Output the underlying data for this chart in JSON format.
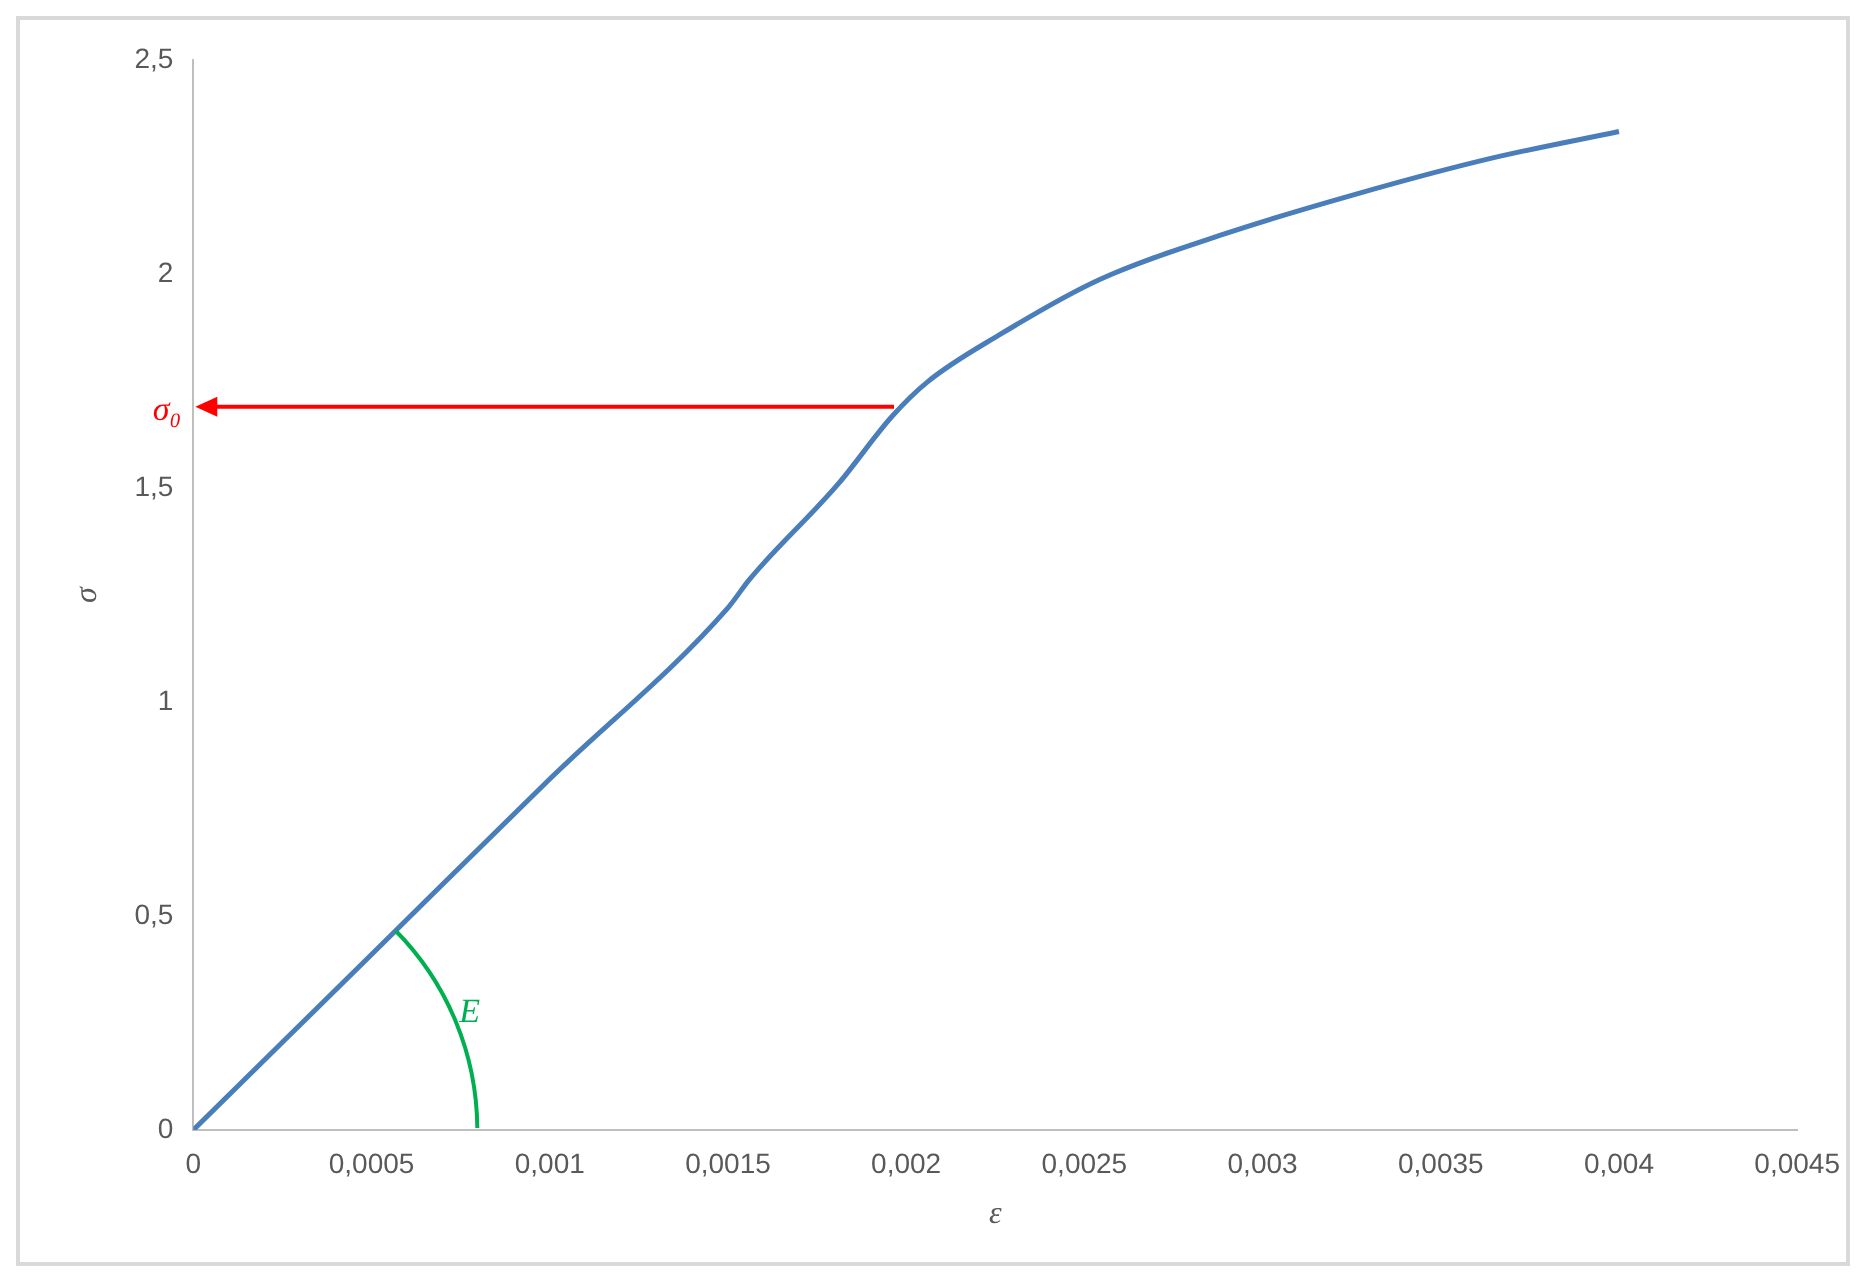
{
  "chart_data": {
    "type": "line",
    "xlabel": "ε",
    "ylabel": "σ",
    "x": [
      0,
      0.0005,
      0.001,
      0.0015,
      0.00156,
      0.00181,
      0.00196,
      0.00206,
      0.00226,
      0.00254,
      0.00288,
      0.00326,
      0.00364,
      0.004
    ],
    "series": [
      {
        "color": "#4a7ebb",
        "values": [
          0,
          0.41,
          0.82,
          1.22,
          1.286,
          1.51,
          1.667,
          1.748,
          1.857,
          1.986,
          2.09,
          2.186,
          2.27,
          2.333
        ]
      }
    ],
    "xlim": [
      0,
      0.0045
    ],
    "xticks": [
      0,
      {
        "value": 0.0005,
        "label": "0,0005"
      },
      {
        "value": 0.001,
        "label": "0,001"
      },
      {
        "value": 0.0015,
        "label": "0,0015"
      },
      {
        "value": 0.002,
        "label": "0,002"
      },
      {
        "value": 0.0025,
        "label": "0,0025"
      },
      {
        "value": 0.003,
        "label": "0,003"
      },
      {
        "value": 0.0035,
        "label": "0,0035"
      },
      {
        "value": 0.004,
        "label": "0,004"
      },
      {
        "value": 0.0045,
        "label": "0,0045"
      }
    ],
    "ylim": [
      0,
      2.5
    ],
    "yticks": [
      0,
      {
        "value": 0.5,
        "label": "0,5"
      },
      1,
      {
        "value": 1.5,
        "label": "1,5"
      },
      2,
      {
        "value": 2.5,
        "label": "2,5"
      }
    ],
    "ref_lines": [
      {
        "axis": "y",
        "value": 1.69,
        "label": "σ₀",
        "color": "#ff0000"
      }
    ],
    "annotations": [
      "E"
    ],
    "grid": false,
    "legend": false,
    "marker": "none",
    "line_style": "solid"
  }
}
